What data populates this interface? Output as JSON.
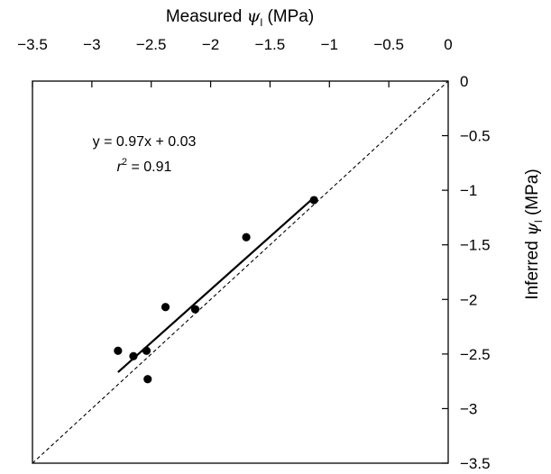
{
  "chart_data": {
    "type": "scatter",
    "x_axis": {
      "label_main": "Measured ",
      "label_symbol": "ψ",
      "label_sub": "l",
      "label_unit": " (MPa)",
      "position": "top",
      "range": [
        -3.5,
        0
      ],
      "ticks": [
        -3.5,
        -3,
        -2.5,
        -2,
        -1.5,
        -1,
        -0.5,
        0
      ],
      "tick_labels": [
        "−3.5",
        "−3",
        "−2.5",
        "−2",
        "−1.5",
        "−1",
        "−0.5",
        "0"
      ]
    },
    "y_axis": {
      "label_main": "Inferred ",
      "label_symbol": "ψ",
      "label_sub": "l",
      "label_unit": " (MPa)",
      "position": "right",
      "range": [
        -3.5,
        0
      ],
      "ticks": [
        0,
        -0.5,
        -1,
        -1.5,
        -2,
        -2.5,
        -3,
        -3.5
      ],
      "tick_labels": [
        "0",
        "−0.5",
        "−1",
        "−1.5",
        "−2",
        "−2.5",
        "−3",
        "−3.5"
      ]
    },
    "points": [
      {
        "x": -2.78,
        "y": -2.47
      },
      {
        "x": -2.65,
        "y": -2.52
      },
      {
        "x": -2.54,
        "y": -2.47
      },
      {
        "x": -2.53,
        "y": -2.73
      },
      {
        "x": -2.38,
        "y": -2.07
      },
      {
        "x": -2.13,
        "y": -2.09
      },
      {
        "x": -1.7,
        "y": -1.43
      },
      {
        "x": -1.13,
        "y": -1.09
      }
    ],
    "regression_line": {
      "slope": 0.97,
      "intercept": 0.03,
      "x_range": [
        -2.78,
        -1.13
      ]
    },
    "reference_line": {
      "type": "1:1",
      "style": "dashed"
    },
    "annotation": {
      "equation": "y = 0.97x + 0.03",
      "r2_prefix": "r",
      "r2_superscript": "2",
      "r2_value": " = 0.91"
    },
    "grid": false,
    "legend": "none"
  }
}
